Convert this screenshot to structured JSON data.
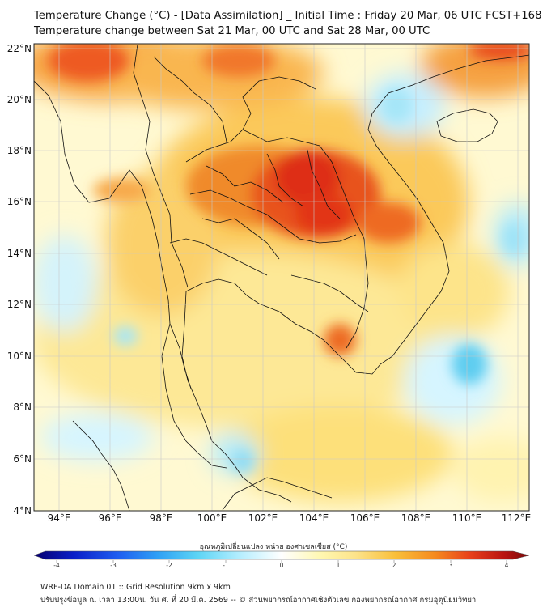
{
  "header": {
    "title_line1": "Temperature Change (°C) - [Data Assimilation] _ Initial Time : Friday 20 Mar, 06 UTC FCST+168",
    "title_line2": "Temperature change between Sat 21 Mar, 00 UTC and Sat 28 Mar, 00 UTC"
  },
  "map": {
    "lat_labels": [
      "22°N",
      "20°N",
      "18°N",
      "16°N",
      "14°N",
      "12°N",
      "10°N",
      "8°N",
      "6°N",
      "4°N"
    ],
    "lon_labels": [
      "94°E",
      "96°E",
      "98°E",
      "100°E",
      "102°E",
      "104°E",
      "106°E",
      "108°E",
      "110°E",
      "112°E"
    ],
    "lat_range": [
      4,
      22.3
    ],
    "lon_range": [
      93,
      112.5
    ]
  },
  "colorbar": {
    "label": "อุณหภูมิเปลี่ยนแปลง หน่วย องศาเซลเซียส (°C)",
    "ticks": [
      "-4",
      "-3",
      "-2",
      "-1",
      "0",
      "1",
      "2",
      "3",
      "4"
    ],
    "range": [
      -4,
      4
    ],
    "colors": [
      "#08006e",
      "#0a1fc8",
      "#1f5ef0",
      "#2fa0f5",
      "#5cd4f5",
      "#b9efff",
      "#ffffff",
      "#fff7b0",
      "#fde38a",
      "#f9bf3a",
      "#f58a1f",
      "#e8411a",
      "#b81410",
      "#7a0a0a"
    ]
  },
  "footer": {
    "line1": "WRF-DA Domain 01 :: Grid Resolution 9km x 9km",
    "line2": "ปรับปรุงข้อมูล ณ เวลา 13:00น. วัน ศ. ที่ 20 มี.ค. 2569 -- © ส่วนพยากรณ์อากาศเชิงตัวเลข กองพยากรณ์อากาศ กรมอุตุนิยมวิทยา"
  }
}
